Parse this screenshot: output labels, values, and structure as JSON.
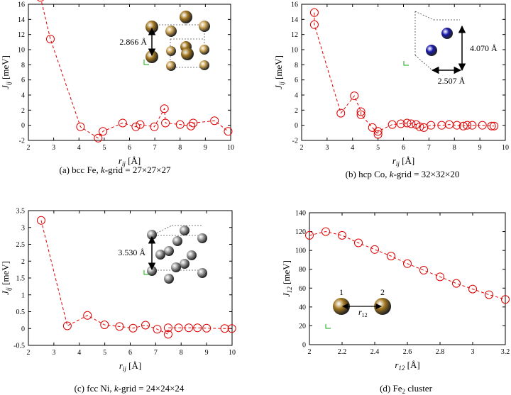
{
  "chart_data": [
    {
      "type": "line",
      "caption": "(a) bcc Fe, k-grid = 27×27×27",
      "caption_parts": [
        "(a) bcc Fe, ",
        "k",
        "-grid = 27×27×27"
      ],
      "xlabel_parts": [
        "r",
        "ij",
        " [Å]"
      ],
      "ylabel_parts": [
        "J",
        "ij",
        " [meV]"
      ],
      "xlim": [
        2,
        10
      ],
      "ylim": [
        -2,
        16
      ],
      "xticks": [
        2,
        3,
        4,
        5,
        6,
        7,
        8,
        9,
        10
      ],
      "yticks": [
        -2,
        0,
        2,
        4,
        6,
        8,
        10,
        12,
        14,
        16
      ],
      "series": [
        {
          "color": "#dd0000",
          "x": [
            2.48,
            2.87,
            4.06,
            4.76,
            4.95,
            5.73,
            6.25,
            6.42,
            6.98,
            7.38,
            7.42,
            8.0,
            8.43,
            8.52,
            9.36,
            9.9
          ],
          "y": [
            16.9,
            11.4,
            -0.2,
            -1.7,
            -0.8,
            0.3,
            -0.2,
            0.1,
            -0.2,
            2.2,
            0.3,
            0.1,
            -0.1,
            0.3,
            0.6,
            -0.8
          ]
        }
      ],
      "annotation": "2.866 Å",
      "atom_color": "#a47820"
    },
    {
      "type": "line",
      "caption": "(b) hcp Co, k-grid = 32×32×20",
      "caption_parts": [
        "(b) hcp Co, ",
        "k",
        "-grid = 32×32×20"
      ],
      "xlabel_parts": [
        "r",
        "ij",
        " [Å]"
      ],
      "ylabel_parts": [
        "J",
        "ij",
        " [meV]"
      ],
      "xlim": [
        2,
        10
      ],
      "ylim": [
        -2,
        16
      ],
      "xticks": [
        2,
        3,
        4,
        5,
        6,
        7,
        8,
        9,
        10
      ],
      "yticks": [
        -2,
        0,
        2,
        4,
        6,
        8,
        10,
        12,
        14,
        16
      ],
      "series": [
        {
          "color": "#dd0000",
          "x": [
            2.5,
            2.5,
            3.54,
            4.07,
            4.33,
            4.33,
            4.78,
            5.0,
            5.0,
            5.56,
            5.9,
            6.14,
            6.3,
            6.5,
            6.64,
            6.8,
            7.08,
            7.5,
            7.8,
            8.1,
            8.35,
            8.5,
            8.7,
            9.1,
            9.46,
            9.56
          ],
          "y": [
            14.9,
            13.3,
            1.6,
            3.9,
            1.8,
            1.4,
            -0.3,
            -1.2,
            -0.8,
            0.1,
            0.2,
            0.3,
            0.2,
            0.1,
            -0.2,
            -0.3,
            0.0,
            0.0,
            0.1,
            0.0,
            -0.1,
            0.0,
            0.0,
            0.0,
            -0.1,
            -0.1
          ]
        }
      ],
      "annotations": [
        "4.070 Å",
        "2.507 Å"
      ],
      "atom_color": "#1a1ab0"
    },
    {
      "type": "line",
      "caption": "(c) fcc Ni, k-grid = 24×24×24",
      "caption_parts": [
        "(c) fcc Ni, ",
        "k",
        "-grid = 24×24×24"
      ],
      "xlabel_parts": [
        "r",
        "ij",
        " [Å]"
      ],
      "ylabel_parts": [
        "J",
        "ij",
        " [meV]"
      ],
      "xlim": [
        2,
        10
      ],
      "ylim": [
        -0.5,
        3.5
      ],
      "xticks": [
        2,
        3,
        4,
        5,
        6,
        7,
        8,
        9,
        10
      ],
      "yticks": [
        -0.5,
        0,
        0.5,
        1,
        1.5,
        2,
        2.5,
        3,
        3.5
      ],
      "series": [
        {
          "color": "#dd0000",
          "x": [
            2.5,
            3.53,
            4.32,
            4.99,
            5.58,
            6.11,
            6.6,
            7.06,
            7.49,
            7.49,
            7.9,
            8.3,
            8.64,
            9.0,
            9.71,
            9.99
          ],
          "y": [
            3.21,
            0.08,
            0.39,
            0.11,
            0.06,
            0.01,
            0.1,
            -0.02,
            -0.17,
            0.02,
            0.02,
            0.02,
            0.02,
            0.01,
            0.0,
            0.0
          ]
        }
      ],
      "annotation": "3.530 Å",
      "atom_color": "#9a9a9a"
    },
    {
      "type": "line",
      "caption_parts": [
        "(d) Fe",
        "2",
        " cluster"
      ],
      "xlabel_parts": [
        "r",
        "12",
        " [Å]"
      ],
      "ylabel_parts": [
        "J",
        "12",
        " [meV]"
      ],
      "xlim": [
        2,
        3.2
      ],
      "ylim": [
        0,
        140
      ],
      "xticks": [
        2,
        2.2,
        2.4,
        2.6,
        2.8,
        3,
        3.2
      ],
      "xtick_labels": [
        "2",
        "2.2",
        "2.4",
        "2.6",
        "2.8",
        "3",
        "3.2"
      ],
      "yticks": [
        0,
        20,
        40,
        60,
        80,
        100,
        120,
        140
      ],
      "series": [
        {
          "color": "#dd0000",
          "x": [
            2.0,
            2.1,
            2.2,
            2.3,
            2.4,
            2.5,
            2.6,
            2.7,
            2.8,
            2.9,
            3.0,
            3.1,
            3.2
          ],
          "y": [
            116,
            120,
            116,
            108,
            101,
            94,
            86,
            79,
            72,
            65,
            59,
            53,
            48
          ]
        }
      ],
      "atom_labels": [
        "1",
        "2"
      ],
      "distance_label_parts": [
        "r",
        "12"
      ],
      "atom_color": "#a47820"
    }
  ]
}
